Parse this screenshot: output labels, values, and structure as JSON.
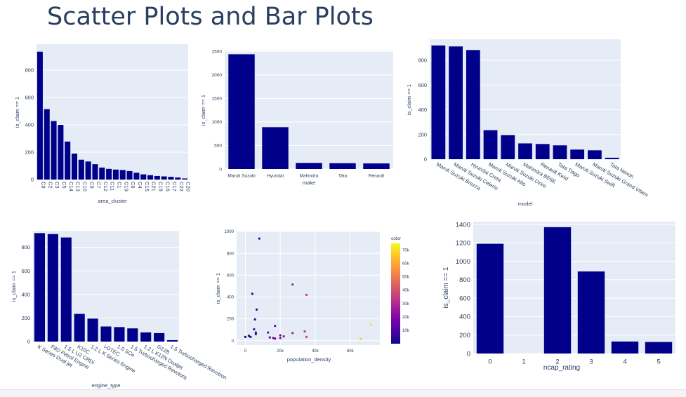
{
  "page": {
    "title": "Scatter Plots and Bar Plots"
  },
  "colors": {
    "bar": "#00008b",
    "plot_bg": "#e5ecf6",
    "grid": "#ffffff",
    "text": "#2a3f5f"
  },
  "chart_data": [
    {
      "id": "area-cluster-chart",
      "type": "bar",
      "xlabel": "area_cluster",
      "ylabel": "is_claim == 1",
      "ylim": [
        0,
        990
      ],
      "yticks": [
        0,
        200,
        400,
        600,
        800
      ],
      "ytick_labels": [
        "0",
        "200",
        "400",
        "600",
        "800"
      ],
      "x_tick_rotation": 90,
      "categories": [
        "C8",
        "C2",
        "C3",
        "C5",
        "C14",
        "C13",
        "C10",
        "C9",
        "C7",
        "C12",
        "C11",
        "C1",
        "C19",
        "C6",
        "C4",
        "C15",
        "C21",
        "C18",
        "C16",
        "C17",
        "C22",
        "C20"
      ],
      "values": [
        935,
        515,
        428,
        400,
        278,
        190,
        145,
        132,
        112,
        88,
        78,
        73,
        70,
        62,
        50,
        38,
        32,
        26,
        23,
        20,
        15,
        8
      ]
    },
    {
      "id": "make-chart",
      "type": "bar",
      "xlabel": "make",
      "ylabel": "is_claim == 1",
      "ylim": [
        0,
        2520
      ],
      "yticks": [
        0,
        500,
        1000,
        1500,
        2000,
        2500
      ],
      "ytick_labels": [
        "0",
        "500",
        "1000",
        "1500",
        "2000",
        "2500"
      ],
      "x_tick_rotation": 0,
      "categories": [
        "Maruti Suzuki",
        "Hyundai",
        "Mahindra",
        "Tata",
        "Renault"
      ],
      "values": [
        2440,
        890,
        130,
        125,
        120
      ]
    },
    {
      "id": "model-chart",
      "type": "bar",
      "xlabel": "model",
      "ylabel": "is_claim == 1",
      "ylim": [
        0,
        970
      ],
      "yticks": [
        0,
        200,
        400,
        600,
        800
      ],
      "ytick_labels": [
        "0",
        "200",
        "400",
        "600",
        "800"
      ],
      "x_tick_rotation": 30,
      "categories": [
        "Maruti Suzuki Brezza",
        "Maruti Suzuki Celerio",
        "Hyundai Creta",
        "Maruti Suzuki Alto",
        "Maruti Suzuki Dzire",
        "Mahindra BE6E",
        "Renault Kwid",
        "Tata Tiago",
        "Maruti Suzuki Swift",
        "Maruti Suzuki Grand Vitara",
        "Tata Nexon"
      ],
      "values": [
        920,
        912,
        883,
        235,
        195,
        128,
        123,
        112,
        78,
        72,
        12
      ]
    },
    {
      "id": "engine-type-chart",
      "type": "bar",
      "xlabel": "engine_type",
      "ylabel": "is_claim == 1",
      "ylim": [
        0,
        940
      ],
      "yticks": [
        0,
        200,
        400,
        600,
        800
      ],
      "ytick_labels": [
        "0",
        "200",
        "400",
        "600",
        "800"
      ],
      "x_tick_rotation": 30,
      "categories": [
        "K Series Dual jet",
        "F8D Petrol Engine",
        "1.5 L U2 CRDi",
        "K10C",
        "1.2 L K Series Engine",
        "i-DTEC",
        "1.0 SCe",
        "1.5 Turbocharged Revotorq",
        "1.2 L K12N Dualjet",
        "G12B",
        "1.5 Turbocharged Revotron"
      ],
      "values": [
        920,
        912,
        883,
        235,
        195,
        128,
        123,
        112,
        78,
        72,
        12
      ]
    },
    {
      "id": "population-density-chart",
      "type": "scatter",
      "xlabel": "population_density",
      "ylabel": "is_claim == 1",
      "xlim": [
        -5000,
        77000
      ],
      "ylim": [
        -40,
        1000
      ],
      "xticks": [
        0,
        20000,
        40000,
        60000
      ],
      "xtick_labels": [
        "0",
        "20k",
        "40k",
        "60k"
      ],
      "yticks": [
        0,
        200,
        400,
        600,
        800,
        1000
      ],
      "ytick_labels": [
        "0",
        "200",
        "400",
        "600",
        "800",
        "1000"
      ],
      "colorbar": {
        "title": "color",
        "min": 0,
        "max": 75000,
        "ticks": [
          10000,
          20000,
          30000,
          40000,
          50000,
          60000,
          70000
        ],
        "tick_labels": [
          "10k",
          "20k",
          "30k",
          "40k",
          "50k",
          "60k",
          "70k"
        ]
      },
      "x": [
        8000,
        4000,
        6500,
        5500,
        5000,
        6000,
        2000,
        3000,
        17000,
        13000,
        16000,
        20000,
        27000,
        35000,
        34000,
        35000,
        27000,
        72000,
        66000,
        20000,
        17000,
        14000,
        22000,
        0,
        6000
      ],
      "y": [
        935,
        430,
        285,
        195,
        105,
        75,
        45,
        35,
        135,
        75,
        25,
        50,
        515,
        420,
        85,
        35,
        70,
        145,
        15,
        25,
        20,
        30,
        40,
        35,
        60
      ],
      "color": [
        8000,
        4000,
        6500,
        5500,
        5000,
        6000,
        2000,
        3000,
        17000,
        13000,
        16000,
        20000,
        27000,
        35000,
        34000,
        35000,
        27000,
        72000,
        66000,
        20000,
        17000,
        14000,
        22000,
        0,
        6000
      ]
    },
    {
      "id": "ncap-rating-chart",
      "type": "bar",
      "xlabel": "ncap_rating",
      "ylabel": "is_claim == 1",
      "ylim": [
        0,
        1430
      ],
      "yticks": [
        0,
        200,
        400,
        600,
        800,
        1000,
        1200,
        1400
      ],
      "ytick_labels": [
        "0",
        "200",
        "400",
        "600",
        "800",
        "1000",
        "1200",
        "1400"
      ],
      "x_tick_rotation": 0,
      "categories": [
        "0",
        "1",
        "2",
        "3",
        "4",
        "5"
      ],
      "values": [
        1190,
        0,
        1370,
        890,
        130,
        125
      ]
    }
  ]
}
